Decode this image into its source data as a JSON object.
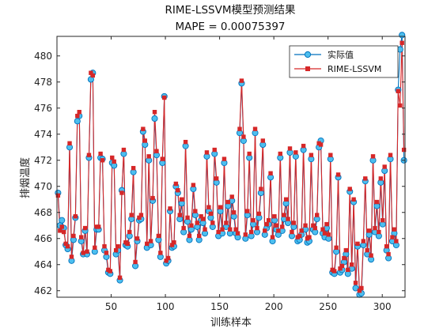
{
  "chart_data": {
    "type": "line",
    "title": "RIME-LSSVM模型预测结果",
    "subtitle": "MAPE = 0.00075397",
    "xlabel": "训练样本",
    "ylabel": "排烟温度",
    "xlim": [
      0,
      321
    ],
    "ylim": [
      461.5,
      481.5
    ],
    "x_ticks": [
      50,
      100,
      150,
      200,
      250,
      300
    ],
    "y_ticks": [
      462,
      464,
      466,
      468,
      470,
      472,
      474,
      476,
      478,
      480
    ],
    "grid": false,
    "legend_position": "top-right",
    "series": [
      {
        "name": "实际值",
        "color": "#0072BD",
        "face_color": "#4DBEEE",
        "marker": "circle",
        "values": [
          469.5,
          467.0,
          467.4,
          466.8,
          465.5,
          465.2,
          473.0,
          464.3,
          465.9,
          467.6,
          475.0,
          475.4,
          465.8,
          464.8,
          466.6,
          464.8,
          472.2,
          478.2,
          478.7,
          465.0,
          466.7,
          466.7,
          472.2,
          472.1,
          465.1,
          464.6,
          463.4,
          463.3,
          471.8,
          471.6,
          464.8,
          465.1,
          462.8,
          469.7,
          472.5,
          465.5,
          465.4,
          466.2,
          467.5,
          471.1,
          463.9,
          465.8,
          467.4,
          467.5,
          474.2,
          473.2,
          465.3,
          472.0,
          465.5,
          468.9,
          475.2,
          472.4,
          465.9,
          464.6,
          471.8,
          476.9,
          464.1,
          464.3,
          468.1,
          465.3,
          465.4,
          470.0,
          469.5,
          467.5,
          468.7,
          466.5,
          473.1,
          467.3,
          465.9,
          466.7,
          469.8,
          467.8,
          466.9,
          465.9,
          467.4,
          467.2,
          466.4,
          472.3,
          468.1,
          467.6,
          466.9,
          472.5,
          470.3,
          466.2,
          468.1,
          466.4,
          471.8,
          466.9,
          468.5,
          466.4,
          468.9,
          467.7,
          466.4,
          466.1,
          474.1,
          477.9,
          473.5,
          466.0,
          467.8,
          472.2,
          466.2,
          467.1,
          474.1,
          466.5,
          467.6,
          469.5,
          473.2,
          466.3,
          466.8,
          467.1,
          470.7,
          465.8,
          467.4,
          466.7,
          466.3,
          472.2,
          466.6,
          467.5,
          468.7,
          467.2,
          472.6,
          466.2,
          466.9,
          472.3,
          465.8,
          465.9,
          466.3,
          472.8,
          466.7,
          465.7,
          465.8,
          472.1,
          466.7,
          466.5,
          467.5,
          473.0,
          473.5,
          466.4,
          466.1,
          466.8,
          466.0,
          472.1,
          463.4,
          463.3,
          465.0,
          470.7,
          463.4,
          463.6,
          464.2,
          464.8,
          463.3,
          469.6,
          463.7,
          468.8,
          462.2,
          465.4,
          461.7,
          461.8,
          465.5,
          470.4,
          464.8,
          466.3,
          464.4,
          472.0,
          466.5,
          468.5,
          466.2,
          470.3,
          467.1,
          471.2,
          465.1,
          464.5,
          472.1,
          465.8,
          466.4,
          465.5,
          477.4,
          480.5,
          481.6,
          472.0
        ]
      },
      {
        "name": "RIME-LSSVM",
        "color": "#D62728",
        "marker": "square",
        "values": [
          469.3,
          466.6,
          466.9,
          466.5,
          465.6,
          465.4,
          473.3,
          464.6,
          466.2,
          467.7,
          475.4,
          475.7,
          466.1,
          464.9,
          466.8,
          465.0,
          472.4,
          478.7,
          478.5,
          465.3,
          466.9,
          466.9,
          472.5,
          472.0,
          465.4,
          464.9,
          463.6,
          463.5,
          472.2,
          471.9,
          465.1,
          465.4,
          463.0,
          469.5,
          472.8,
          465.7,
          465.6,
          466.5,
          467.8,
          471.4,
          464.2,
          466.0,
          467.6,
          467.8,
          474.4,
          473.5,
          465.6,
          472.3,
          465.8,
          469.1,
          475.7,
          472.7,
          466.2,
          464.9,
          472.1,
          476.8,
          464.3,
          464.5,
          468.3,
          465.5,
          465.7,
          470.2,
          469.7,
          467.8,
          469.0,
          466.8,
          473.4,
          467.6,
          466.2,
          467.0,
          470.1,
          468.1,
          467.2,
          466.2,
          467.7,
          467.5,
          466.7,
          472.6,
          468.4,
          467.9,
          467.2,
          472.8,
          470.6,
          466.5,
          468.4,
          466.7,
          472.1,
          467.2,
          468.8,
          466.7,
          469.2,
          468.0,
          466.7,
          466.4,
          474.4,
          478.1,
          473.8,
          466.3,
          468.1,
          472.5,
          466.5,
          467.4,
          474.4,
          466.8,
          467.9,
          469.8,
          473.5,
          466.6,
          467.1,
          467.4,
          471.0,
          466.1,
          467.7,
          467.0,
          466.6,
          472.5,
          466.9,
          467.8,
          469.0,
          467.5,
          472.9,
          466.5,
          467.2,
          472.6,
          466.1,
          466.2,
          466.6,
          473.1,
          467.0,
          466.0,
          466.1,
          472.4,
          467.0,
          466.8,
          467.8,
          473.3,
          473.2,
          466.7,
          466.4,
          467.1,
          466.3,
          472.4,
          463.6,
          463.5,
          465.3,
          470.9,
          463.7,
          463.9,
          464.5,
          465.1,
          463.6,
          469.8,
          464.0,
          469.0,
          462.6,
          465.6,
          462.0,
          462.2,
          465.8,
          470.6,
          465.1,
          466.6,
          464.7,
          472.3,
          466.8,
          468.8,
          466.5,
          470.6,
          467.4,
          471.5,
          465.4,
          464.8,
          472.4,
          466.1,
          466.7,
          465.8,
          477.3,
          476.2,
          481.0,
          472.8
        ]
      }
    ]
  }
}
